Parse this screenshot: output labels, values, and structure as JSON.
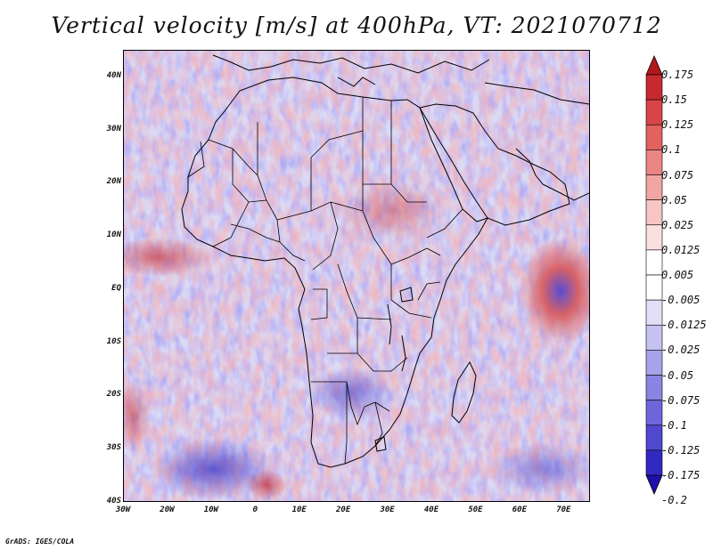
{
  "title": "Vertical velocity [m/s] at 400hPa, VT: 2021070712",
  "footer": "GrADS: IGES/COLA",
  "map": {
    "lat_range": [
      -40,
      45
    ],
    "lon_range": [
      -30,
      76
    ],
    "lat_ticks": [
      "40N",
      "30N",
      "20N",
      "10N",
      "EQ",
      "10S",
      "20S",
      "30S",
      "40S"
    ],
    "lat_values": [
      40,
      30,
      20,
      10,
      0,
      -10,
      -20,
      -30,
      -40
    ],
    "lon_ticks": [
      "30W",
      "20W",
      "10W",
      "0",
      "10E",
      "20E",
      "30E",
      "40E",
      "50E",
      "60E",
      "70E"
    ],
    "lon_values": [
      -30,
      -20,
      -10,
      0,
      10,
      20,
      30,
      40,
      50,
      60,
      70
    ]
  },
  "colorbar": {
    "labels": [
      "0.175",
      "0.15",
      "0.125",
      "0.1",
      "0.075",
      "0.05",
      "0.025",
      "0.0125",
      "0.005",
      "-0.005",
      "-0.0125",
      "-0.025",
      "-0.05",
      "-0.075",
      "-0.1",
      "-0.125",
      "-0.175",
      "-0.2"
    ],
    "colors": [
      "#b2181b",
      "#c62a2e",
      "#d84448",
      "#e2625f",
      "#eb8584",
      "#f1a6a4",
      "#f6c5c4",
      "#fae0df",
      "#ffffff",
      "#ffffff",
      "#e2e0f7",
      "#c5c2f1",
      "#a7a2ea",
      "#8a84e2",
      "#6d66da",
      "#5048cf",
      "#3229c2",
      "#1e10a8"
    ]
  }
}
